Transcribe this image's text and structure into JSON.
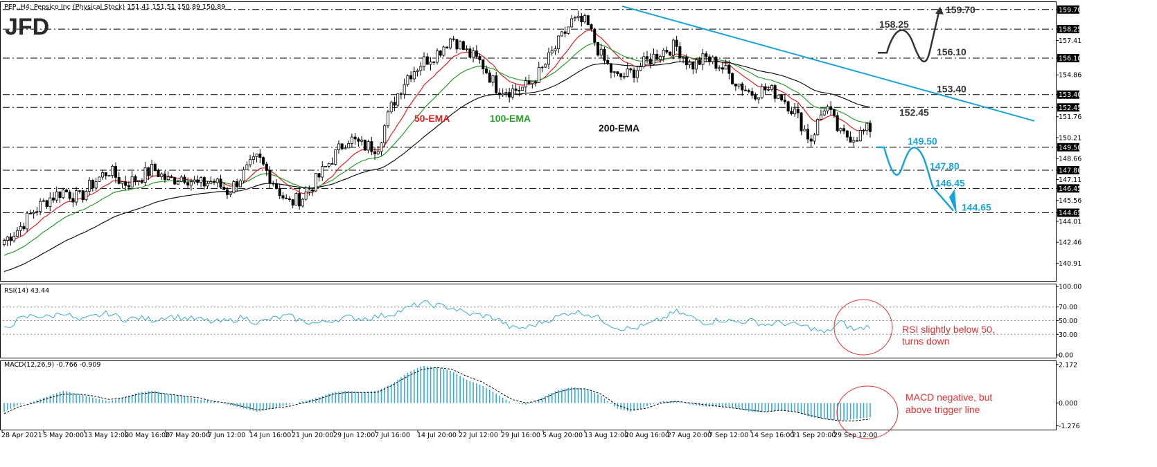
{
  "header": {
    "symbol_line": "PEP,,H4:  Pepsico Inc (Physical Stock)  151.41 151.51 150.89 150.89",
    "logo": "JFD"
  },
  "colors": {
    "candle": "#000000",
    "ema50": "#e02020",
    "ema100": "#2a9a2a",
    "ema200": "#111111",
    "blue": "#1aa3d6",
    "trend": "#1aa3d6",
    "dark": "#333333",
    "rsi": "#39a9cf",
    "macd_hist": "#39a9cf",
    "note": "#e03030"
  },
  "chart_data": [
    {
      "type": "candlestick",
      "name": "price",
      "ylim": [
        139.6,
        160.1
      ],
      "right_axis_ticks": [
        159.7,
        158.25,
        157.41,
        156.1,
        154.86,
        153.4,
        152.45,
        151.76,
        150.21,
        149.5,
        148.66,
        147.8,
        147.11,
        146.45,
        145.56,
        144.65,
        144.01,
        142.46,
        140.91
      ],
      "x_labels": [
        "28 Apr 2021",
        "5 May 20:00",
        "13 May 12:00",
        "20 May 16:00",
        "27 May 20:00",
        "7 Jun 12:00",
        "14 Jun 16:00",
        "21 Jun 20:00",
        "29 Jun 12:00",
        "7 Jul 16:00",
        "14 Jul 20:00",
        "22 Jul 12:00",
        "29 Jul 16:00",
        "5 Aug 20:00",
        "13 Aug 12:00",
        "20 Aug 16:00",
        "27 Aug 20:00",
        "7 Sep 12:00",
        "14 Sep 16:00",
        "21 Sep 20:00",
        "29 Sep 12:00"
      ],
      "horizontal_levels": [
        159.7,
        158.25,
        156.1,
        153.4,
        152.45,
        149.5,
        147.8,
        146.45,
        144.65
      ],
      "level_labels": [
        {
          "text": "159.70",
          "value": 159.7,
          "color": "#333333"
        },
        {
          "text": "158.25",
          "value": 158.25,
          "color": "#333333"
        },
        {
          "text": "156.10",
          "value": 156.1,
          "color": "#333333"
        },
        {
          "text": "153.40",
          "value": 153.4,
          "color": "#333333"
        },
        {
          "text": "152.45",
          "value": 152.45,
          "color": "#333333"
        },
        {
          "text": "149.50",
          "value": 149.5,
          "color": "#1aa3d6"
        },
        {
          "text": "147.80",
          "value": 147.8,
          "color": "#1aa3d6"
        },
        {
          "text": "146.45",
          "value": 146.45,
          "color": "#1aa3d6"
        },
        {
          "text": "144.65",
          "value": 144.65,
          "color": "#1aa3d6"
        }
      ],
      "ema_labels": [
        {
          "text": "50-EMA",
          "color": "#e02020"
        },
        {
          "text": "100-EMA",
          "color": "#2a9a2a"
        },
        {
          "text": "200-EMA",
          "color": "#111111"
        }
      ],
      "path_key_points": [
        142.6,
        143.5,
        144.8,
        145.7,
        146.3,
        145.7,
        146.9,
        147.8,
        146.8,
        147.2,
        147.9,
        147.0,
        147.4,
        146.7,
        147.0,
        146.2,
        147.5,
        148.7,
        147.0,
        145.3,
        145.8,
        147.2,
        148.7,
        150.2,
        149.6,
        149.5,
        152.7,
        154.8,
        155.8,
        156.5,
        157.7,
        156.5,
        155.7,
        153.9,
        153.7,
        154.0,
        155.2,
        157.0,
        158.8,
        158.7,
        156.2,
        154.6,
        155.0,
        155.8,
        156.6,
        157.0,
        155.5,
        156.1,
        155.5,
        154.4,
        153.5,
        153.8,
        153.4,
        152.0,
        150.0,
        152.7,
        150.4,
        150.3,
        150.9
      ]
    },
    {
      "type": "line",
      "name": "RSI(14)",
      "label": "RSI(14) 43.44",
      "ylim": [
        0,
        100
      ],
      "ticks": [
        100.0,
        70.0,
        50.0,
        30.0,
        0.0
      ],
      "levels": [
        70,
        50,
        30
      ],
      "values": [
        38,
        52,
        58,
        55,
        63,
        49,
        56,
        61,
        52,
        54,
        51,
        57,
        54,
        52,
        48,
        49,
        55,
        47,
        53,
        57,
        49,
        46,
        51,
        55,
        53,
        56,
        60,
        68,
        76,
        72,
        69,
        60,
        58,
        53,
        39,
        40,
        48,
        55,
        63,
        61,
        52,
        40,
        38,
        43,
        52,
        63,
        55,
        47,
        52,
        48,
        50,
        44,
        47,
        44,
        40,
        31,
        48,
        36,
        43
      ],
      "note": "RSI slightly below 50,\nturns down"
    },
    {
      "type": "bar",
      "name": "MACD(12,26,9)",
      "label": "MACD(12,26,9) -0.766 -0.909",
      "ylim": [
        -1.5,
        2.4
      ],
      "ticks": [
        2.172,
        0.0,
        -1.276
      ],
      "histogram": [
        -0.5,
        -0.1,
        0.1,
        0.4,
        0.7,
        0.5,
        0.3,
        0.1,
        0.3,
        0.6,
        0.7,
        0.5,
        0.4,
        0.2,
        0.1,
        -0.1,
        -0.3,
        -0.5,
        -0.3,
        -0.1,
        0.1,
        0.3,
        0.6,
        0.7,
        0.6,
        0.7,
        1.1,
        1.7,
        2.1,
        2.0,
        1.8,
        1.3,
        1.0,
        0.5,
        0.0,
        -0.1,
        0.3,
        0.7,
        0.9,
        0.8,
        0.4,
        -0.3,
        -0.5,
        -0.2,
        0.1,
        0.1,
        -0.1,
        -0.2,
        -0.2,
        -0.3,
        -0.5,
        -0.5,
        -0.4,
        -0.5,
        -0.8,
        -0.9,
        -1.0,
        -0.9,
        -0.8
      ],
      "signal": [
        -0.6,
        -0.2,
        0.0,
        0.3,
        0.5,
        0.5,
        0.4,
        0.2,
        0.3,
        0.5,
        0.6,
        0.5,
        0.4,
        0.3,
        0.1,
        0.0,
        -0.2,
        -0.4,
        -0.3,
        -0.2,
        0.0,
        0.2,
        0.5,
        0.6,
        0.6,
        0.6,
        1.0,
        1.5,
        1.9,
        2.0,
        1.9,
        1.5,
        1.2,
        0.7,
        0.2,
        0.0,
        0.2,
        0.6,
        0.8,
        0.8,
        0.5,
        -0.1,
        -0.4,
        -0.3,
        0.0,
        0.1,
        0.0,
        -0.1,
        -0.2,
        -0.3,
        -0.4,
        -0.5,
        -0.4,
        -0.5,
        -0.7,
        -0.9,
        -1.0,
        -1.0,
        -0.9
      ],
      "note": "MACD negative, but\nabove trigger line"
    }
  ]
}
